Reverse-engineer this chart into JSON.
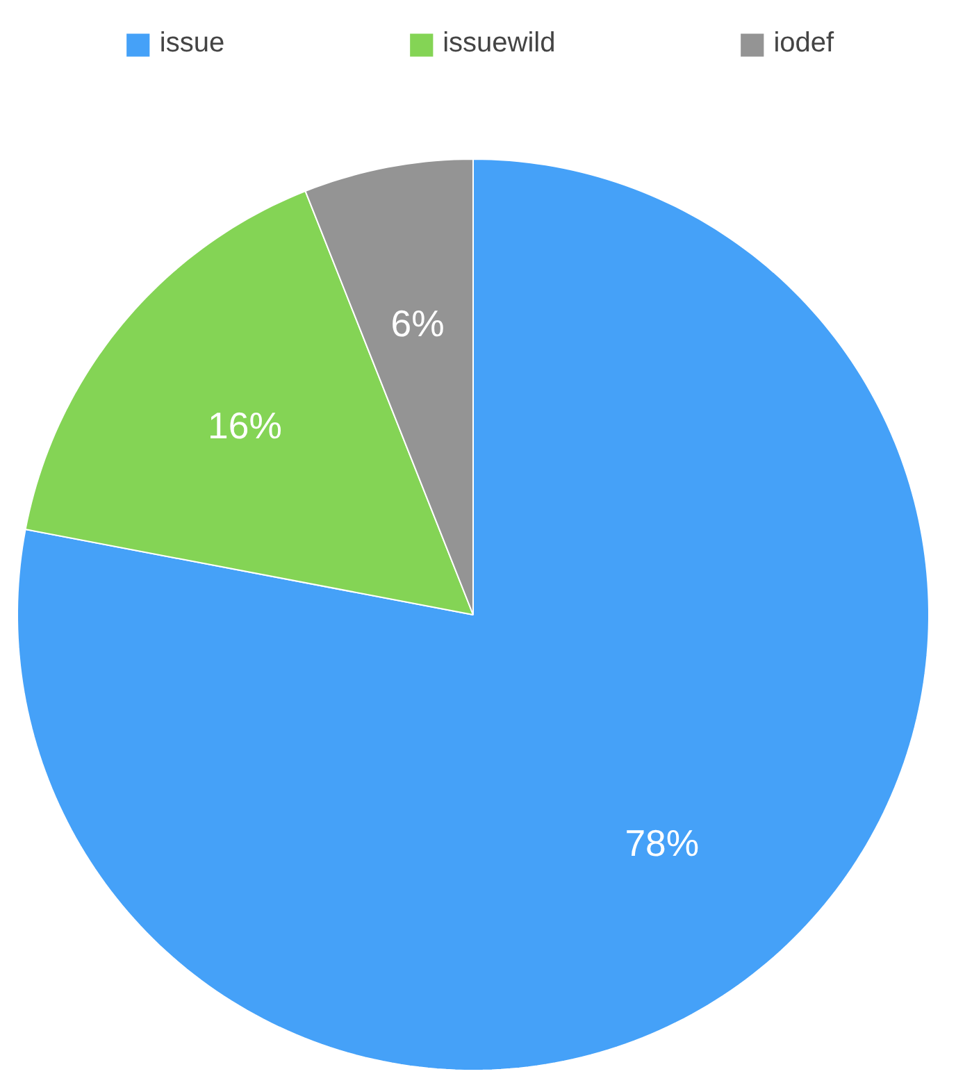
{
  "chart_data": {
    "type": "pie",
    "categories": [
      "issue",
      "issuewild",
      "iodef"
    ],
    "values": [
      78,
      16,
      6
    ],
    "colors": [
      "#45a1f8",
      "#84d455",
      "#949494"
    ],
    "value_labels": [
      "78%",
      "16%",
      "6%"
    ],
    "legend": "top"
  }
}
